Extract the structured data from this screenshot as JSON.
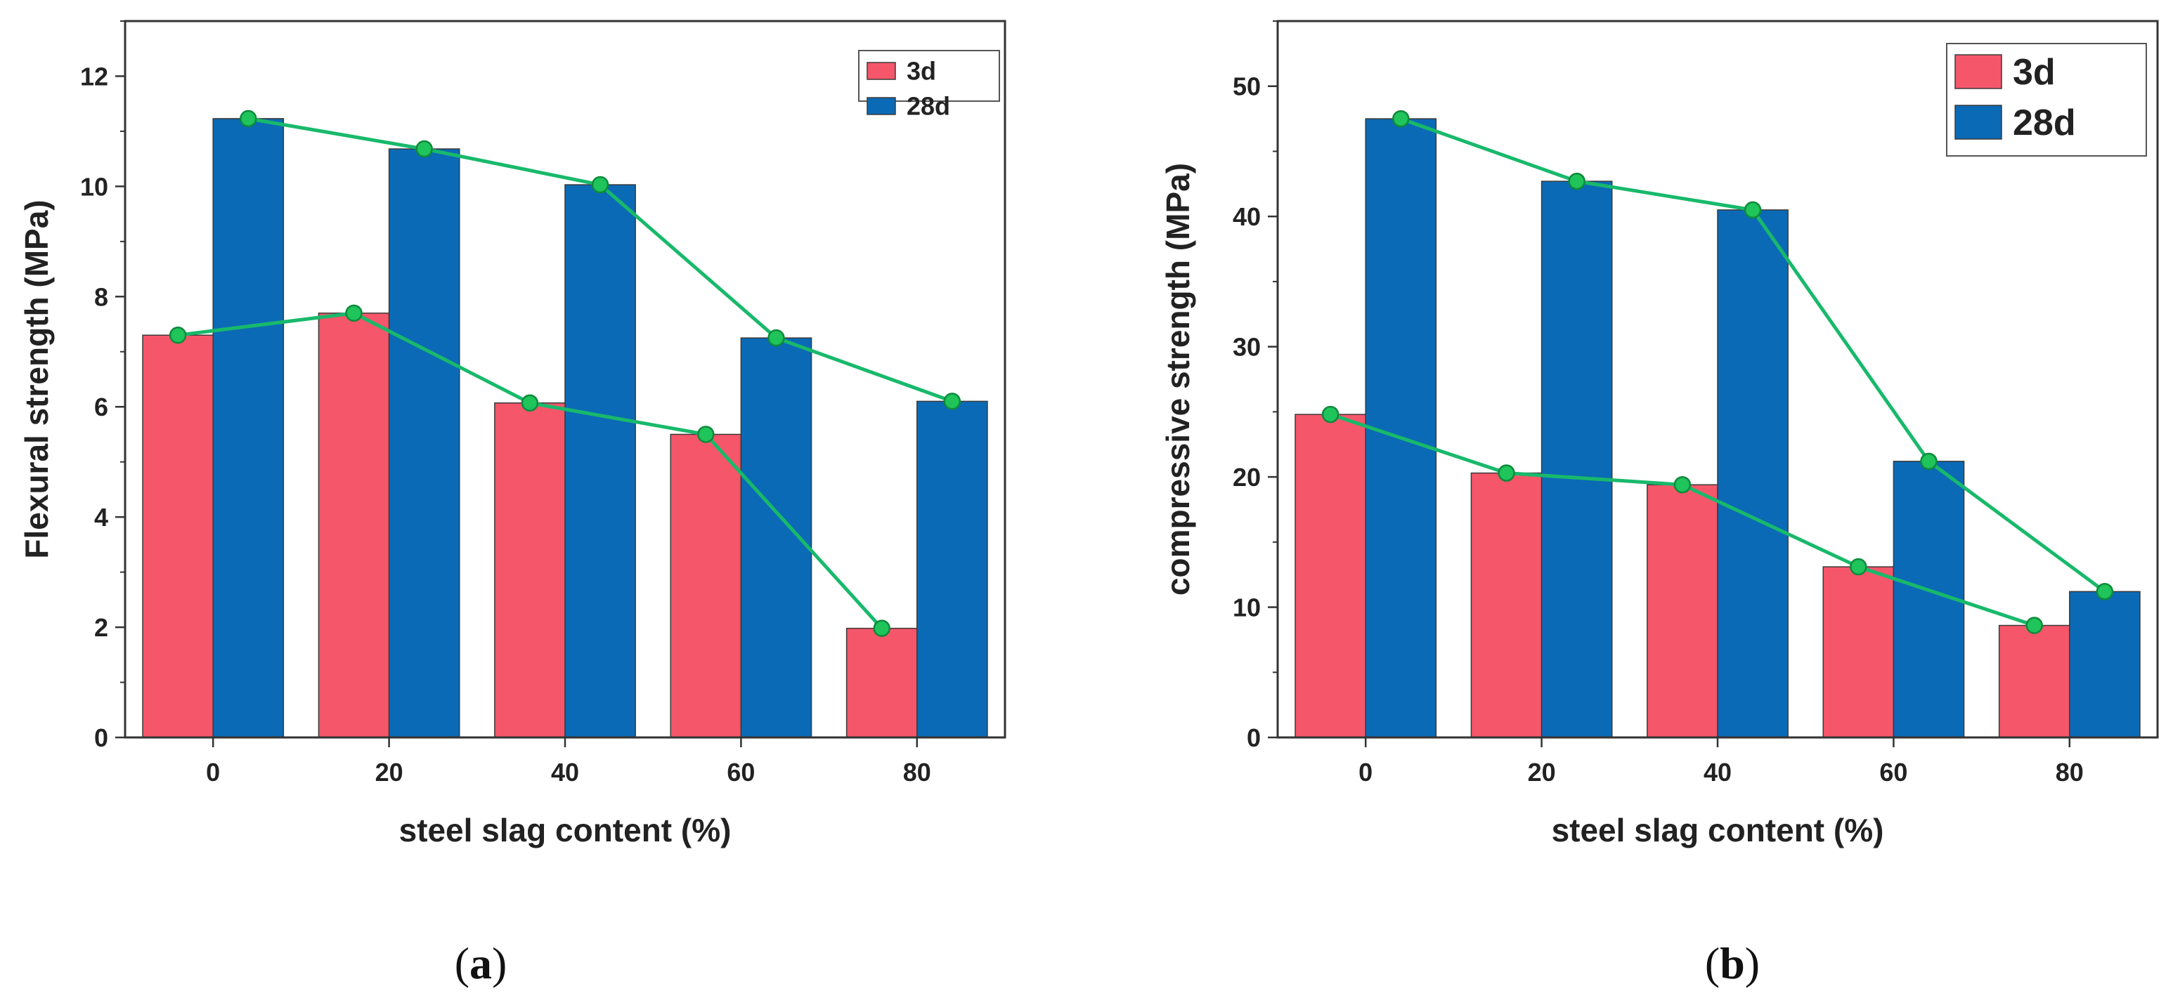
{
  "colors": {
    "series_3d": "#f5566a",
    "series_28d": "#0b6ab5",
    "trend_line": "#18b96b",
    "trend_marker": "#1fc45a",
    "axis": "#333333"
  },
  "chart_data": [
    {
      "type": "bar",
      "panel_label": "a",
      "title": "",
      "xlabel": "steel slag content  (%)",
      "ylabel": "Flexural strength  (MPa)",
      "categories": [
        "0",
        "20",
        "40",
        "60",
        "80"
      ],
      "ylim": [
        0,
        13
      ],
      "yticks": [
        0,
        2,
        4,
        6,
        8,
        10,
        12
      ],
      "grid": false,
      "legend_position": "top-right",
      "series": [
        {
          "name": "3d",
          "values": [
            7.3,
            7.7,
            6.07,
            5.5,
            1.98
          ]
        },
        {
          "name": "28d",
          "values": [
            11.23,
            10.68,
            10.03,
            7.25,
            6.1
          ]
        }
      ],
      "annotations": "green line with markers connects the top of each series' bars"
    },
    {
      "type": "bar",
      "panel_label": "b",
      "title": "",
      "xlabel": "steel slag content  (%)",
      "ylabel": "compressive strength  (MPa)",
      "categories": [
        "0",
        "20",
        "40",
        "60",
        "80"
      ],
      "ylim": [
        0,
        55
      ],
      "yticks": [
        0,
        10,
        20,
        30,
        40,
        50
      ],
      "grid": false,
      "legend_position": "top-right",
      "series": [
        {
          "name": "3d",
          "values": [
            24.8,
            20.3,
            19.4,
            13.1,
            8.6
          ]
        },
        {
          "name": "28d",
          "values": [
            47.5,
            42.7,
            40.5,
            21.2,
            11.2
          ]
        }
      ],
      "annotations": "green line with markers connects the top of each series' bars"
    }
  ]
}
